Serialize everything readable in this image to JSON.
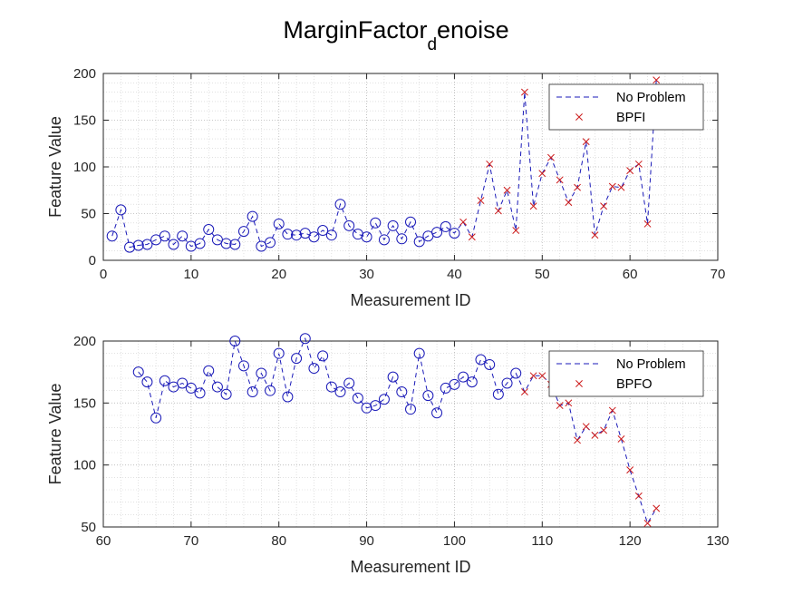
{
  "title": {
    "main": "MarginFactor",
    "subscript": "d",
    "suffix": "enoise"
  },
  "colors": {
    "series_line": "#1a1ab8",
    "marker_none": "#1a1ab8",
    "marker_fault": "#cc1a1a",
    "grid": "#cfcfcf",
    "axis": "#262626"
  },
  "chart_data": [
    {
      "type": "scatter",
      "title": "MarginFactor_denoise",
      "xlabel": "Measurement ID",
      "ylabel": "Feature Value",
      "xlim": [
        0,
        70
      ],
      "ylim": [
        0,
        200
      ],
      "xticks": [
        0,
        10,
        20,
        30,
        40,
        50,
        60,
        70
      ],
      "yticks": [
        0,
        50,
        100,
        150,
        200
      ],
      "grid": "on (major + minor, dotted)",
      "legend_position": "top-right",
      "series": [
        {
          "name": "No Problem",
          "style": "dashed line, circle markers",
          "x": [
            1,
            2,
            3,
            4,
            5,
            6,
            7,
            8,
            9,
            10,
            11,
            12,
            13,
            14,
            15,
            16,
            17,
            18,
            19,
            20,
            21,
            22,
            23,
            24,
            25,
            26,
            27,
            28,
            29,
            30,
            31,
            32,
            33,
            34,
            35,
            36,
            37,
            38,
            39,
            40
          ],
          "y": [
            26,
            54,
            14,
            16,
            17,
            22,
            26,
            17,
            26,
            15,
            18,
            33,
            22,
            18,
            17,
            31,
            47,
            15,
            19,
            39,
            28,
            27,
            29,
            25,
            32,
            27,
            60,
            37,
            28,
            25,
            40,
            22,
            37,
            23,
            41,
            20,
            26,
            30,
            36,
            29
          ]
        },
        {
          "name": "BPFI",
          "style": "x markers",
          "x": [
            41,
            42,
            43,
            44,
            45,
            46,
            47,
            48,
            49,
            50,
            51,
            52,
            53,
            54,
            55,
            56,
            57,
            58,
            59,
            60,
            61,
            62,
            63
          ],
          "y": [
            41,
            25,
            64,
            103,
            53,
            75,
            32,
            180,
            58,
            93,
            110,
            86,
            62,
            78,
            127,
            27,
            58,
            79,
            78,
            96,
            103,
            39,
            193
          ]
        }
      ]
    },
    {
      "type": "scatter",
      "xlabel": "Measurement ID",
      "ylabel": "Feature Value",
      "xlim": [
        60,
        130
      ],
      "ylim": [
        50,
        200
      ],
      "xticks": [
        60,
        70,
        80,
        90,
        100,
        110,
        120,
        130
      ],
      "yticks": [
        50,
        100,
        150,
        200
      ],
      "grid": "on (major + minor, dotted)",
      "legend_position": "top-right",
      "series": [
        {
          "name": "No Problem",
          "style": "dashed line, circle markers",
          "x": [
            64,
            65,
            66,
            67,
            68,
            69,
            70,
            71,
            72,
            73,
            74,
            75,
            76,
            77,
            78,
            79,
            80,
            81,
            82,
            83,
            84,
            85,
            86,
            87,
            88,
            89,
            90,
            91,
            92,
            93,
            94,
            95,
            96,
            97,
            98,
            99,
            100,
            101,
            102,
            103,
            104,
            105,
            106,
            107
          ],
          "y": [
            175,
            167,
            138,
            168,
            163,
            166,
            162,
            158,
            176,
            163,
            157,
            200,
            180,
            159,
            174,
            160,
            190,
            155,
            186,
            202,
            178,
            188,
            163,
            159,
            166,
            154,
            146,
            148,
            153,
            171,
            159,
            145,
            190,
            156,
            142,
            162,
            165,
            171,
            167,
            185,
            181,
            157,
            166,
            174
          ]
        },
        {
          "name": "BPFO",
          "style": "x markers",
          "x": [
            108,
            109,
            110,
            111,
            112,
            113,
            114,
            115,
            116,
            117,
            118,
            119,
            120,
            121,
            122,
            123
          ],
          "y": [
            159,
            172,
            172,
            165,
            148,
            150,
            120,
            131,
            124,
            128,
            144,
            121,
            96,
            75,
            53,
            65
          ]
        }
      ]
    }
  ]
}
